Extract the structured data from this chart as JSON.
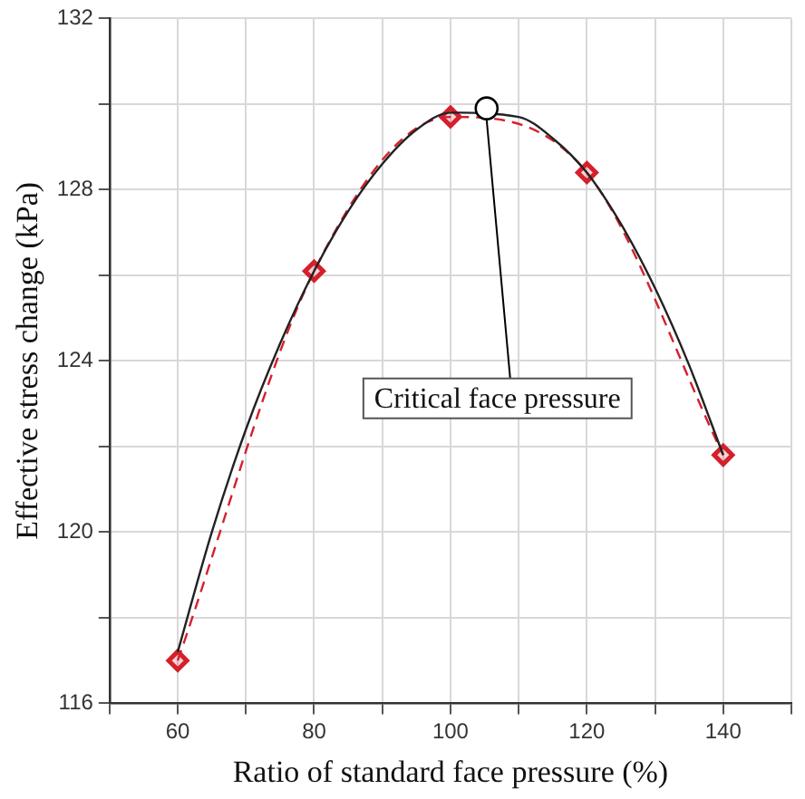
{
  "chart_data": {
    "type": "line",
    "xlabel": "Ratio of standard face pressure (%)",
    "ylabel": "Effective stress change (kPa)",
    "xlim": [
      50,
      150
    ],
    "xticks": [
      {
        "value": 50,
        "label": null
      },
      60,
      {
        "value": 70,
        "label": null
      },
      80,
      {
        "value": 90,
        "label": null
      },
      100,
      {
        "value": 110,
        "label": null
      },
      120,
      {
        "value": 130,
        "label": null
      },
      140,
      {
        "value": 150,
        "label": null
      }
    ],
    "ylim": [
      116,
      132
    ],
    "yticks": [
      116,
      {
        "value": 118,
        "label": null
      },
      120,
      {
        "value": 122,
        "label": null
      },
      124,
      {
        "value": 126,
        "label": null
      },
      128,
      {
        "value": 130,
        "label": null
      },
      132
    ],
    "grid": true,
    "legend": false,
    "series": [
      {
        "color": "#222222",
        "line_style": "solid",
        "marker": "none",
        "x": [
          60,
          65,
          70,
          75,
          80,
          85,
          90,
          95,
          100,
          110,
          115,
          120,
          125,
          130,
          135,
          140
        ],
        "values": [
          117.2,
          120.0,
          122.4,
          124.4,
          126.1,
          127.5,
          128.6,
          129.4,
          129.8,
          129.7,
          129.2,
          128.4,
          127.2,
          125.7,
          123.9,
          121.8
        ]
      },
      {
        "color": "#d4202c",
        "line_style": "dashed",
        "marker": "diamond",
        "x": [
          60,
          80,
          100,
          120,
          140
        ],
        "values": [
          117.0,
          126.1,
          129.7,
          128.4,
          121.8
        ]
      }
    ],
    "annotations": [
      {
        "text": "Critical face pressure",
        "x": 105.3,
        "y": 129.9
      }
    ]
  }
}
